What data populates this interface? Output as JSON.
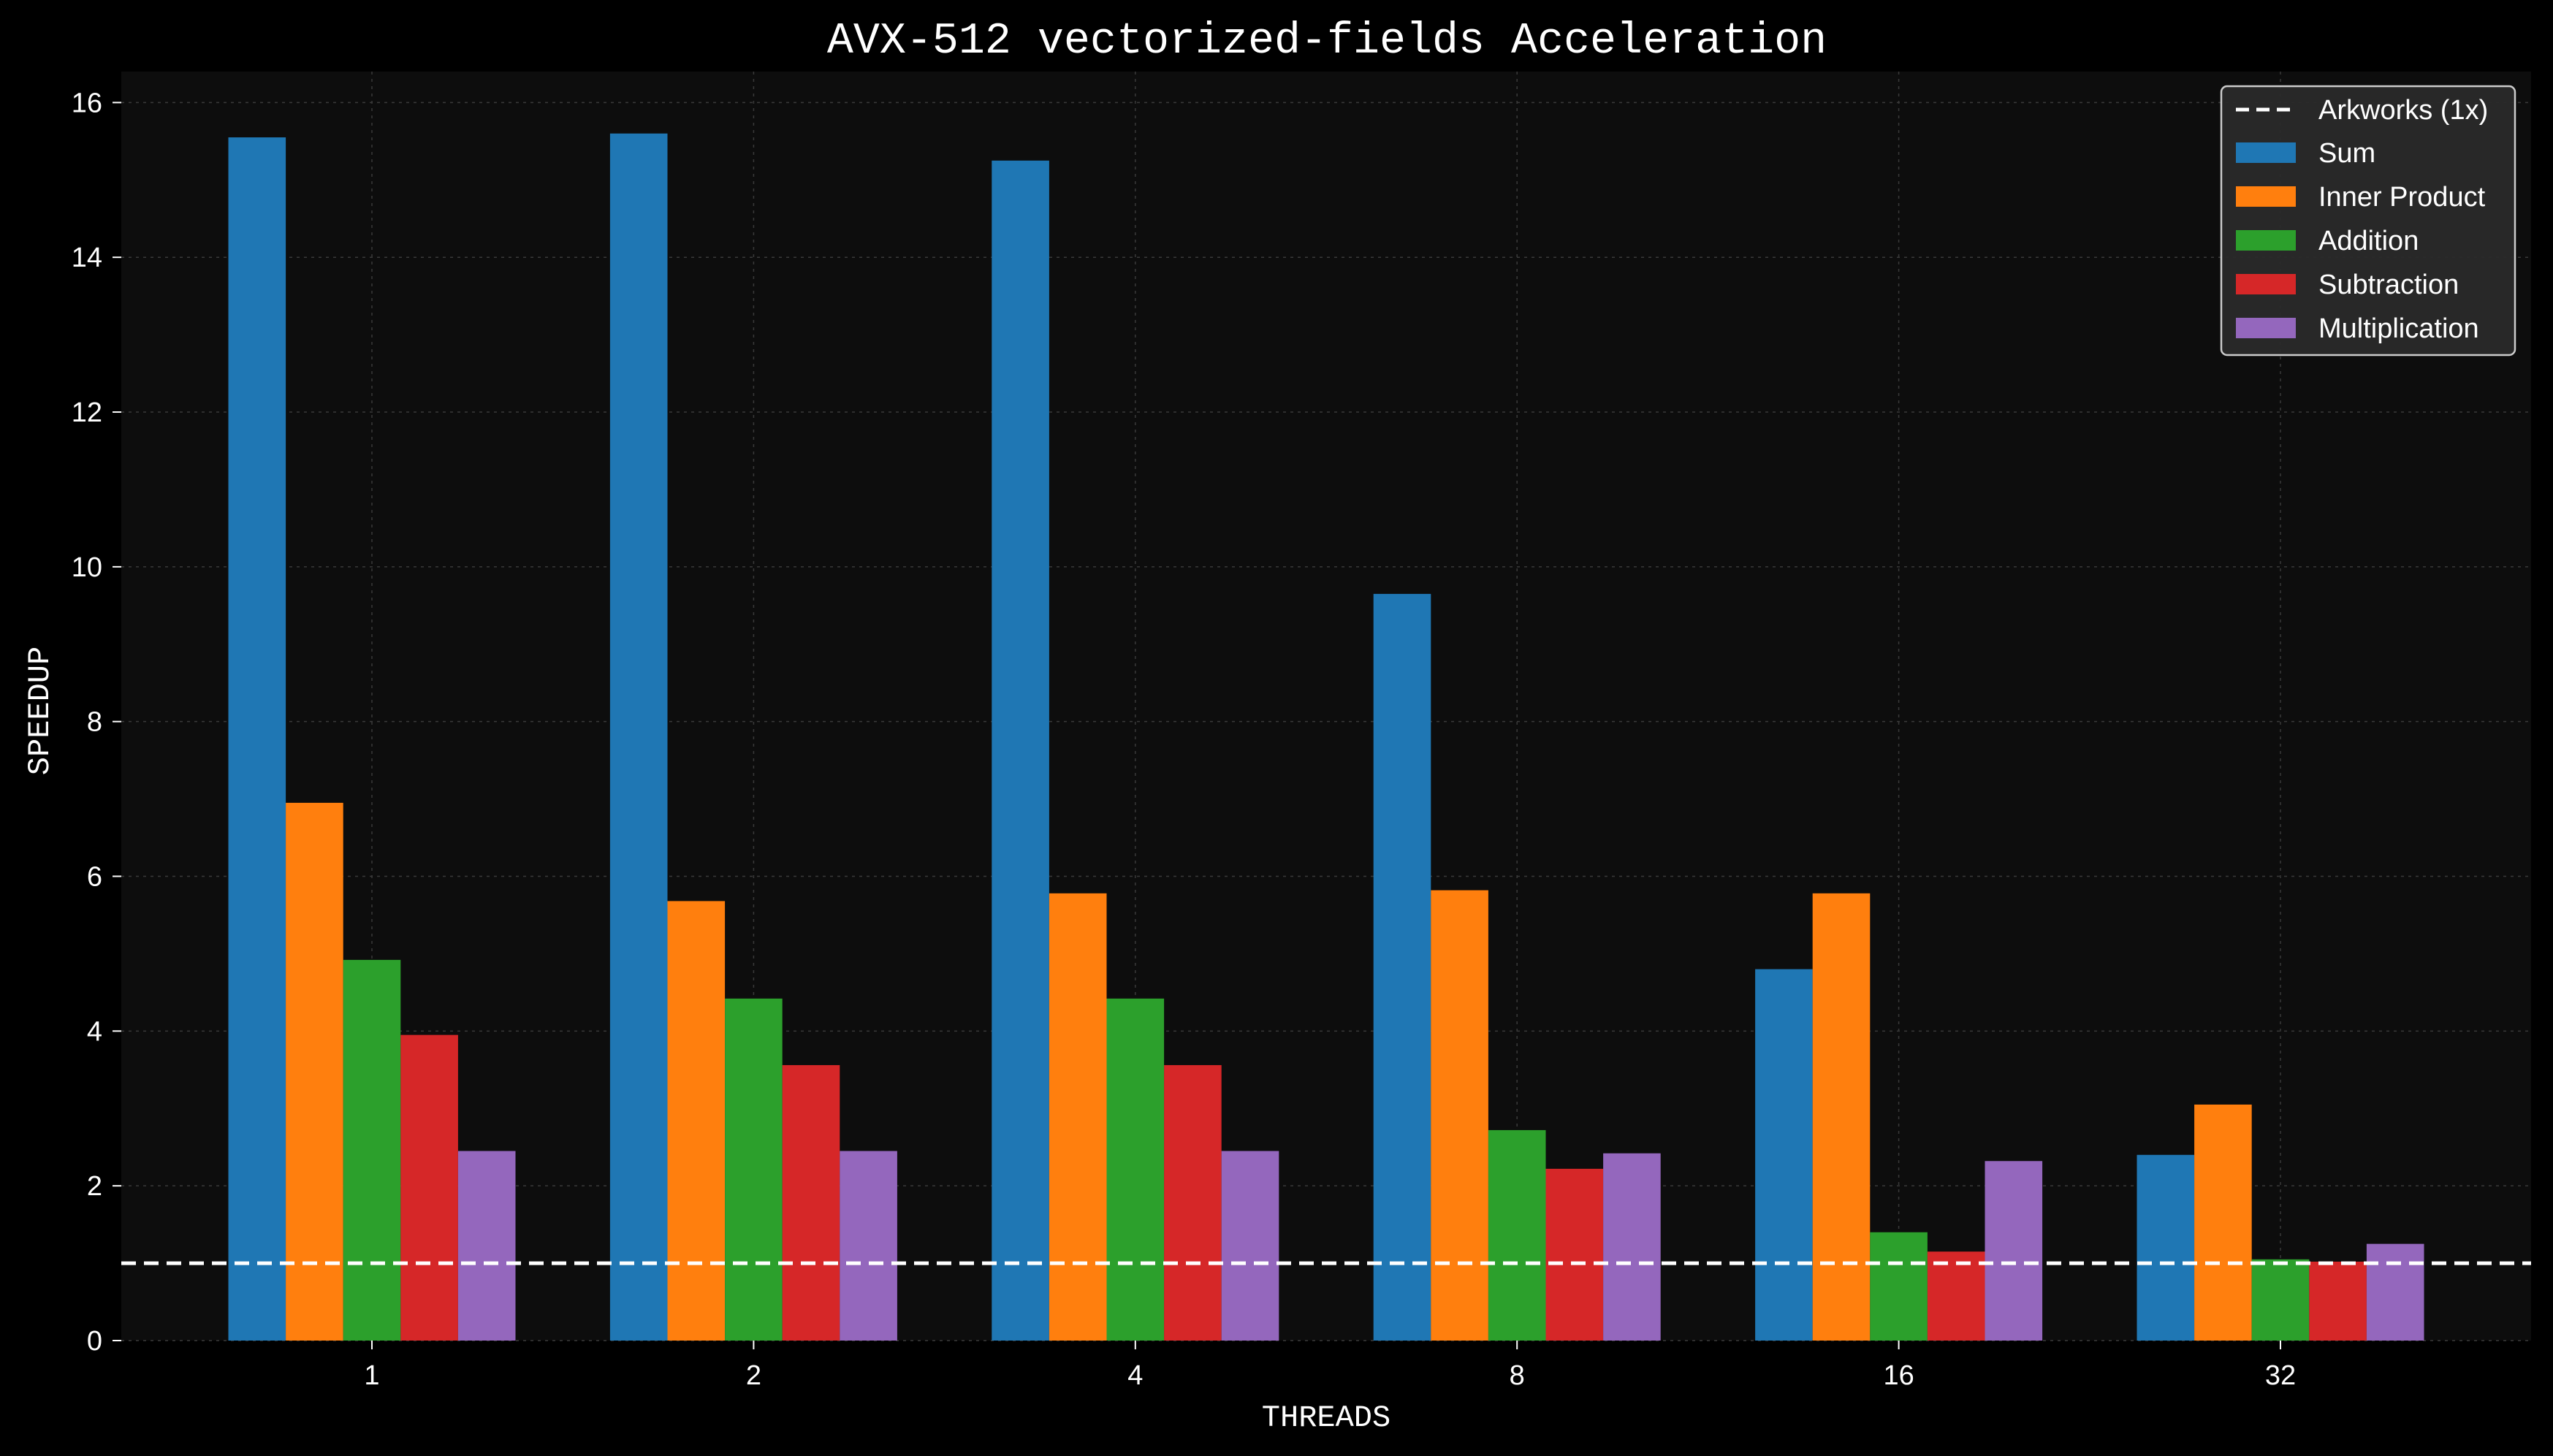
{
  "chart_data": {
    "type": "bar",
    "title": "AVX-512 vectorized-fields Acceleration",
    "xlabel": "THREADS",
    "ylabel": "SPEEDUP",
    "categories": [
      "1",
      "2",
      "4",
      "8",
      "16",
      "32"
    ],
    "ylim": [
      0,
      16.4
    ],
    "yticks": [
      "0",
      "2",
      "4",
      "6",
      "8",
      "10",
      "12",
      "14",
      "16"
    ],
    "grid": true,
    "legend_position": "top-right",
    "baseline": {
      "name": "Arkworks (1x)",
      "value": 1,
      "color": "#ffffff",
      "style": "dashed"
    },
    "series": [
      {
        "name": "Sum",
        "color": "#1f77b4",
        "values": [
          15.55,
          15.6,
          15.25,
          9.65,
          4.8,
          2.4
        ]
      },
      {
        "name": "Inner Product",
        "color": "#ff7f0e",
        "values": [
          6.95,
          5.68,
          5.78,
          5.82,
          5.78,
          3.05
        ]
      },
      {
        "name": "Addition",
        "color": "#2ca02c",
        "values": [
          4.92,
          4.42,
          4.42,
          2.72,
          1.4,
          1.05
        ]
      },
      {
        "name": "Subtraction",
        "color": "#d62728",
        "values": [
          3.95,
          3.56,
          3.56,
          2.22,
          1.15,
          1.02
        ]
      },
      {
        "name": "Multiplication",
        "color": "#9467bd",
        "values": [
          2.45,
          2.45,
          2.45,
          2.42,
          2.32,
          1.25
        ]
      }
    ]
  }
}
